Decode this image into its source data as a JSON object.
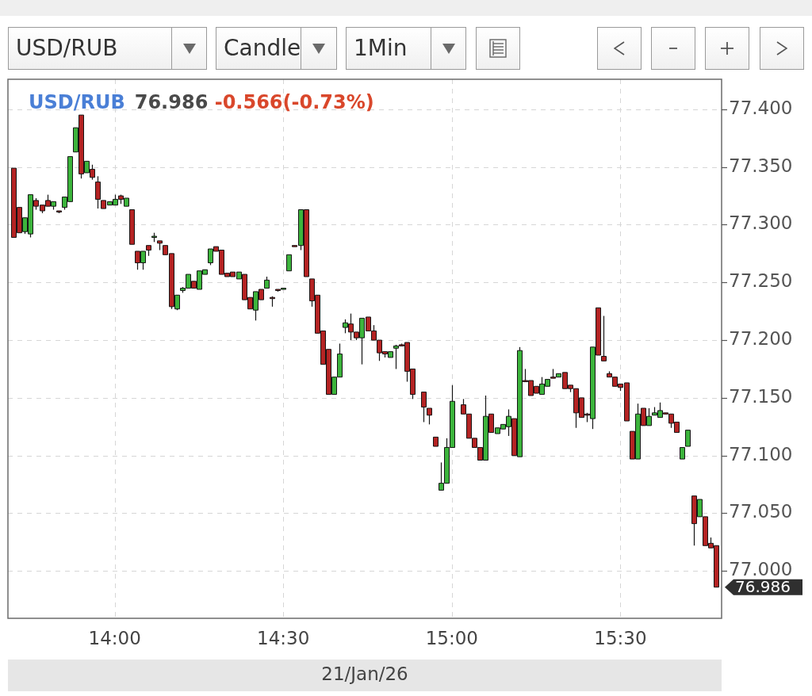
{
  "chart_data": {
    "type": "candlestick",
    "title": "USD/RUB",
    "subtitle": "76.986 -0.566(-0.73%)",
    "xlabel": "21/Jan/26",
    "annotations": [
      "Candle",
      "1Min",
      "76.986"
    ],
    "x": [
      "--01-21T13:42",
      "--01-21T13:43",
      "--01-21T13:44",
      "--01-21T13:45",
      "--01-21T13:46",
      "--01-21T13:47",
      "--01-21T13:48",
      "--01-21T13:49",
      "--01-21T13:50",
      "--01-21T13:51",
      "--01-21T13:52",
      "--01-21T13:53",
      "--01-21T13:54",
      "--01-21T13:55",
      "--01-21T13:56",
      "--01-21T13:57",
      "--01-21T13:58",
      "--01-21T13:59",
      "--01-21T14:00",
      "--01-21T14:01",
      "--01-21T14:02",
      "--01-21T14:03",
      "--01-21T14:04",
      "--01-21T14:05",
      "--01-21T14:06",
      "--01-21T14:07",
      "--01-21T14:08",
      "--01-21T14:09",
      "--01-21T14:10",
      "--01-21T14:11",
      "--01-21T14:12",
      "--01-21T14:13",
      "--01-21T14:14",
      "--01-21T14:15",
      "--01-21T14:16",
      "--01-21T14:17",
      "--01-21T14:18",
      "--01-21T14:19",
      "--01-21T14:20",
      "--01-21T14:21",
      "--01-21T14:22",
      "--01-21T14:23",
      "--01-21T14:24",
      "--01-21T14:25",
      "--01-21T14:26",
      "--01-21T14:27",
      "--01-21T14:28",
      "--01-21T14:29",
      "--01-21T14:30",
      "--01-21T14:31",
      "--01-21T14:32",
      "--01-21T14:33",
      "--01-21T14:34",
      "--01-21T14:35",
      "--01-21T14:36",
      "--01-21T14:37",
      "--01-21T14:38",
      "--01-21T14:39",
      "--01-21T14:40",
      "--01-21T14:41",
      "--01-21T14:42",
      "--01-21T14:43",
      "--01-21T14:44",
      "--01-21T14:45",
      "--01-21T14:46",
      "--01-21T14:47",
      "--01-21T14:48",
      "--01-21T14:49",
      "--01-21T14:50",
      "--01-21T14:51",
      "--01-21T14:52",
      "--01-21T14:53",
      "--01-21T14:55",
      "--01-21T14:56",
      "--01-21T14:57",
      "--01-21T14:58",
      "--01-21T14:59",
      "--01-21T15:00",
      "--01-21T15:02",
      "--01-21T15:03",
      "--01-21T15:04",
      "--01-21T15:05",
      "--01-21T15:06",
      "--01-21T15:07",
      "--01-21T15:08",
      "--01-21T15:09",
      "--01-21T15:10",
      "--01-21T15:11",
      "--01-21T15:12",
      "--01-21T15:13",
      "--01-21T15:14",
      "--01-21T15:15",
      "--01-21T15:16",
      "--01-21T15:17",
      "--01-21T15:18",
      "--01-21T15:19",
      "--01-21T15:20",
      "--01-21T15:21",
      "--01-21T15:22",
      "--01-21T15:23",
      "--01-21T15:24",
      "--01-21T15:25",
      "--01-21T15:26",
      "--01-21T15:27",
      "--01-21T15:28",
      "--01-21T15:29",
      "--01-21T15:30",
      "--01-21T15:31",
      "--01-21T15:32",
      "--01-21T15:33",
      "--01-21T15:34",
      "--01-21T15:35",
      "--01-21T15:36",
      "--01-21T15:37",
      "--01-21T15:38",
      "--01-21T15:39",
      "--01-21T15:40",
      "--01-21T15:41",
      "--01-21T15:42",
      "--01-21T15:43",
      "--01-21T15:44",
      "--01-21T15:45",
      "--01-21T15:46",
      "--01-21T15:47"
    ],
    "ohlc": [
      [
        77.349,
        77.349,
        77.289,
        77.289
      ],
      [
        77.315,
        77.315,
        77.293,
        77.293
      ],
      [
        77.294,
        77.306,
        77.292,
        77.306
      ],
      [
        77.292,
        77.326,
        77.289,
        77.326
      ],
      [
        77.321,
        77.323,
        77.313,
        77.316
      ],
      [
        77.317,
        77.317,
        77.31,
        77.312
      ],
      [
        77.321,
        77.326,
        77.316,
        77.316
      ],
      [
        77.316,
        77.32,
        77.313,
        77.32
      ],
      [
        77.312,
        77.312,
        77.31,
        77.311
      ],
      [
        77.315,
        77.324,
        77.313,
        77.324
      ],
      [
        77.32,
        77.359,
        77.32,
        77.359
      ],
      [
        77.363,
        77.384,
        77.363,
        77.384
      ],
      [
        77.395,
        77.395,
        77.34,
        77.344
      ],
      [
        77.345,
        77.355,
        77.345,
        77.355
      ],
      [
        77.348,
        77.352,
        77.339,
        77.341
      ],
      [
        77.337,
        77.342,
        77.314,
        77.322
      ],
      [
        77.321,
        77.321,
        77.314,
        77.314
      ],
      [
        77.317,
        77.32,
        77.317,
        77.32
      ],
      [
        77.317,
        77.326,
        77.317,
        77.322
      ],
      [
        77.325,
        77.326,
        77.318,
        77.322
      ],
      [
        77.316,
        77.323,
        77.316,
        77.323
      ],
      [
        77.313,
        77.313,
        77.283,
        77.283
      ],
      [
        77.277,
        77.277,
        77.261,
        77.267
      ],
      [
        77.267,
        77.277,
        77.261,
        77.277
      ],
      [
        77.282,
        77.282,
        77.273,
        77.278
      ],
      [
        77.289,
        77.293,
        77.285,
        77.29
      ],
      [
        77.286,
        77.286,
        77.278,
        77.284
      ],
      [
        77.282,
        77.282,
        77.274,
        77.274
      ],
      [
        77.275,
        77.275,
        77.227,
        77.229
      ],
      [
        77.227,
        77.239,
        77.226,
        77.239
      ],
      [
        77.243,
        77.246,
        77.241,
        77.245
      ],
      [
        77.245,
        77.257,
        77.245,
        77.257
      ],
      [
        77.251,
        77.251,
        77.245,
        77.245
      ],
      [
        77.244,
        77.26,
        77.244,
        77.26
      ],
      [
        77.257,
        77.261,
        77.257,
        77.261
      ],
      [
        77.267,
        77.279,
        77.265,
        77.279
      ],
      [
        77.281,
        77.281,
        77.277,
        77.277
      ],
      [
        77.278,
        77.278,
        77.257,
        77.257
      ],
      [
        77.258,
        77.258,
        77.255,
        77.255
      ],
      [
        77.259,
        77.259,
        77.255,
        77.255
      ],
      [
        77.253,
        77.259,
        77.253,
        77.259
      ],
      [
        77.257,
        77.257,
        77.235,
        77.235
      ],
      [
        77.237,
        77.237,
        77.227,
        77.227
      ],
      [
        77.226,
        77.242,
        77.217,
        77.242
      ],
      [
        77.244,
        77.244,
        77.235,
        77.235
      ],
      [
        77.245,
        77.255,
        77.245,
        77.252
      ],
      [
        77.237,
        77.238,
        77.229,
        77.236
      ],
      [
        77.244,
        77.244,
        77.242,
        77.243
      ],
      [
        77.244,
        77.245,
        77.244,
        77.245
      ],
      [
        77.26,
        77.274,
        77.26,
        77.274
      ],
      [
        77.282,
        77.282,
        77.281,
        77.281
      ],
      [
        77.282,
        77.313,
        77.278,
        77.313
      ],
      [
        77.313,
        77.313,
        77.255,
        77.255
      ],
      [
        77.253,
        77.253,
        77.229,
        77.234
      ],
      [
        77.239,
        77.239,
        77.206,
        77.206
      ],
      [
        77.208,
        77.208,
        77.179,
        77.179
      ],
      [
        77.192,
        77.192,
        77.153,
        77.153
      ],
      [
        77.153,
        77.168,
        77.153,
        77.168
      ],
      [
        77.168,
        77.197,
        77.168,
        77.188
      ],
      [
        77.211,
        77.218,
        77.206,
        77.215
      ],
      [
        77.214,
        77.223,
        77.2,
        77.207
      ],
      [
        77.207,
        77.207,
        77.2,
        77.202
      ],
      [
        77.202,
        77.219,
        77.179,
        77.219
      ],
      [
        77.22,
        77.22,
        77.208,
        77.208
      ],
      [
        77.208,
        77.213,
        77.2,
        77.2
      ],
      [
        77.2,
        77.2,
        77.182,
        77.189
      ],
      [
        77.19,
        77.19,
        77.185,
        77.188
      ],
      [
        77.185,
        77.19,
        77.185,
        77.19
      ],
      [
        77.193,
        77.196,
        77.175,
        77.195
      ],
      [
        77.196,
        77.197,
        77.195,
        77.195
      ],
      [
        77.198,
        77.198,
        77.164,
        77.173
      ],
      [
        77.175,
        77.175,
        77.149,
        77.153
      ],
      [
        77.155,
        77.155,
        77.129,
        77.142
      ],
      [
        77.141,
        77.141,
        77.127,
        77.135
      ],
      [
        77.116,
        77.116,
        77.108,
        77.108
      ],
      [
        77.07,
        77.094,
        77.07,
        77.076
      ],
      [
        77.076,
        77.115,
        77.076,
        77.107
      ],
      [
        77.107,
        77.161,
        77.107,
        77.147
      ],
      [
        77.144,
        77.149,
        77.136,
        77.136
      ],
      [
        77.136,
        77.136,
        77.115,
        77.115
      ],
      [
        77.115,
        77.115,
        77.107,
        77.107
      ],
      [
        77.107,
        77.107,
        77.096,
        77.096
      ],
      [
        77.096,
        77.152,
        77.096,
        77.134
      ],
      [
        77.136,
        77.136,
        77.12,
        77.12
      ],
      [
        77.119,
        77.124,
        77.119,
        77.124
      ],
      [
        77.123,
        77.127,
        77.123,
        77.127
      ],
      [
        77.125,
        77.14,
        77.117,
        77.134
      ],
      [
        77.132,
        77.132,
        77.1,
        77.1
      ],
      [
        77.099,
        77.194,
        77.099,
        77.191
      ],
      [
        77.165,
        77.175,
        77.164,
        77.164
      ],
      [
        77.165,
        77.165,
        77.152,
        77.152
      ],
      [
        77.16,
        77.16,
        77.154,
        77.154
      ],
      [
        77.153,
        77.168,
        77.153,
        77.162
      ],
      [
        77.16,
        77.166,
        77.16,
        77.166
      ],
      [
        77.168,
        77.175,
        77.167,
        77.167
      ],
      [
        77.168,
        77.171,
        77.168,
        77.171
      ],
      [
        77.172,
        77.172,
        77.158,
        77.158
      ],
      [
        77.161,
        77.161,
        77.155,
        77.158
      ],
      [
        77.158,
        77.158,
        77.124,
        77.137
      ],
      [
        77.15,
        77.15,
        77.133,
        77.133
      ],
      [
        77.136,
        77.137,
        77.129,
        77.135
      ],
      [
        77.132,
        77.194,
        77.123,
        77.194
      ],
      [
        77.228,
        77.228,
        77.187,
        77.187
      ],
      [
        77.186,
        77.221,
        77.182,
        77.182
      ],
      [
        77.171,
        77.173,
        77.168,
        77.168
      ],
      [
        77.168,
        77.168,
        77.16,
        77.16
      ],
      [
        77.162,
        77.162,
        77.156,
        77.159
      ],
      [
        77.163,
        77.163,
        77.13,
        77.13
      ],
      [
        77.121,
        77.121,
        77.097,
        77.097
      ],
      [
        77.097,
        77.145,
        77.097,
        77.136
      ],
      [
        77.141,
        77.141,
        77.126,
        77.126
      ],
      [
        77.126,
        77.141,
        77.126,
        77.134
      ],
      [
        77.135,
        77.142,
        77.135,
        77.137
      ],
      [
        77.133,
        77.146,
        77.133,
        77.139
      ],
      [
        77.137,
        77.137,
        77.136,
        77.136
      ],
      [
        77.136,
        77.136,
        77.124,
        77.128
      ],
      [
        77.129,
        77.129,
        77.12,
        77.12
      ],
      [
        77.097,
        77.107,
        77.097,
        77.107
      ],
      [
        77.108,
        77.122,
        77.108,
        77.122
      ],
      [
        77.065,
        77.065,
        77.022,
        77.041
      ],
      [
        77.047,
        77.062,
        77.047,
        77.062
      ],
      [
        77.047,
        77.047,
        77.022,
        77.022
      ],
      [
        77.024,
        77.029,
        77.02,
        77.02
      ],
      [
        77.022,
        77.022,
        76.986,
        76.986
      ]
    ],
    "colors": [
      "#b42323",
      "#b42323",
      "#3cb43c",
      "#3cb43c",
      "#b42323",
      "#b42323",
      "#b42323",
      "#3cb43c",
      "#b42323",
      "#3cb43c",
      "#3cb43c",
      "#3cb43c",
      "#b42323",
      "#3cb43c",
      "#b42323",
      "#b42323",
      "#b42323",
      "#3cb43c",
      "#3cb43c",
      "#b42323",
      "#3cb43c",
      "#b42323",
      "#b42323",
      "#3cb43c",
      "#b42323",
      "#3cb43c",
      "#b42323",
      "#b42323",
      "#b42323",
      "#3cb43c",
      "#3cb43c",
      "#3cb43c",
      "#b42323",
      "#3cb43c",
      "#3cb43c",
      "#3cb43c",
      "#b42323",
      "#b42323",
      "#b42323",
      "#b42323",
      "#3cb43c",
      "#b42323",
      "#b42323",
      "#3cb43c",
      "#b42323",
      "#3cb43c",
      "#b42323",
      "#b42323",
      "#3cb43c",
      "#3cb43c",
      "#b42323",
      "#3cb43c",
      "#b42323",
      "#b42323",
      "#b42323",
      "#b42323",
      "#b42323",
      "#3cb43c",
      "#3cb43c",
      "#3cb43c",
      "#b42323",
      "#b42323",
      "#3cb43c",
      "#b42323",
      "#b42323",
      "#b42323",
      "#b42323",
      "#3cb43c",
      "#3cb43c",
      "#b42323",
      "#b42323",
      "#b42323",
      "#b42323",
      "#b42323",
      "#b42323",
      "#3cb43c",
      "#3cb43c",
      "#3cb43c",
      "#b42323",
      "#b42323",
      "#b42323",
      "#b42323",
      "#3cb43c",
      "#b42323",
      "#3cb43c",
      "#3cb43c",
      "#3cb43c",
      "#b42323",
      "#3cb43c",
      "#b42323",
      "#b42323",
      "#b42323",
      "#3cb43c",
      "#3cb43c",
      "#b42323",
      "#3cb43c",
      "#b42323",
      "#b42323",
      "#b42323",
      "#b42323",
      "#b42323",
      "#3cb43c",
      "#b42323",
      "#b42323",
      "#b42323",
      "#b42323",
      "#b42323",
      "#b42323",
      "#b42323",
      "#3cb43c",
      "#b42323",
      "#3cb43c",
      "#3cb43c",
      "#3cb43c",
      "#b42323",
      "#b42323",
      "#b42323",
      "#3cb43c",
      "#3cb43c",
      "#b42323",
      "#3cb43c",
      "#b42323",
      "#b42323",
      "#b42323"
    ],
    "xlim": [
      "--01-21T13:41",
      "--01-21T15:48"
    ],
    "xticks": [
      {
        "value": "--01-21T14:00",
        "label": "14:00"
      },
      {
        "value": "--01-21T14:30",
        "label": "14:30"
      },
      {
        "value": "--01-21T15:00",
        "label": "15:00"
      },
      {
        "value": "--01-21T15:30",
        "label": "15:30"
      }
    ],
    "ylim": [
      76.959,
      77.426
    ],
    "yticks": [
      {
        "value": 77.0,
        "label": "77.000"
      },
      {
        "value": 77.05,
        "label": "77.050"
      },
      {
        "value": 77.1,
        "label": "77.100"
      },
      {
        "value": 77.15,
        "label": "77.150"
      },
      {
        "value": 77.2,
        "label": "77.200"
      },
      {
        "value": 77.25,
        "label": "77.250"
      },
      {
        "value": 77.3,
        "label": "77.300"
      },
      {
        "value": 77.35,
        "label": "77.350"
      },
      {
        "value": 77.4,
        "label": "77.400"
      }
    ],
    "grid": true
  }
}
